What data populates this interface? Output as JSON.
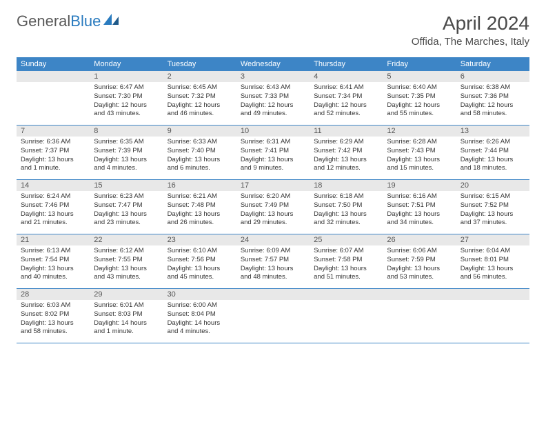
{
  "brand": {
    "part1": "General",
    "part2": "Blue"
  },
  "title": "April 2024",
  "location": "Offida, The Marches, Italy",
  "colors": {
    "header_bg": "#3d85c6",
    "header_text": "#ffffff",
    "daynum_bg": "#e8e8e8",
    "border": "#3d85c6",
    "body_text": "#333333",
    "brand_gray": "#5a5a5a",
    "brand_blue": "#2a7bbf"
  },
  "day_names": [
    "Sunday",
    "Monday",
    "Tuesday",
    "Wednesday",
    "Thursday",
    "Friday",
    "Saturday"
  ],
  "weeks": [
    [
      {
        "n": "",
        "sunrise": "",
        "sunset": "",
        "daylight": ""
      },
      {
        "n": "1",
        "sunrise": "Sunrise: 6:47 AM",
        "sunset": "Sunset: 7:30 PM",
        "daylight": "Daylight: 12 hours and 43 minutes."
      },
      {
        "n": "2",
        "sunrise": "Sunrise: 6:45 AM",
        "sunset": "Sunset: 7:32 PM",
        "daylight": "Daylight: 12 hours and 46 minutes."
      },
      {
        "n": "3",
        "sunrise": "Sunrise: 6:43 AM",
        "sunset": "Sunset: 7:33 PM",
        "daylight": "Daylight: 12 hours and 49 minutes."
      },
      {
        "n": "4",
        "sunrise": "Sunrise: 6:41 AM",
        "sunset": "Sunset: 7:34 PM",
        "daylight": "Daylight: 12 hours and 52 minutes."
      },
      {
        "n": "5",
        "sunrise": "Sunrise: 6:40 AM",
        "sunset": "Sunset: 7:35 PM",
        "daylight": "Daylight: 12 hours and 55 minutes."
      },
      {
        "n": "6",
        "sunrise": "Sunrise: 6:38 AM",
        "sunset": "Sunset: 7:36 PM",
        "daylight": "Daylight: 12 hours and 58 minutes."
      }
    ],
    [
      {
        "n": "7",
        "sunrise": "Sunrise: 6:36 AM",
        "sunset": "Sunset: 7:37 PM",
        "daylight": "Daylight: 13 hours and 1 minute."
      },
      {
        "n": "8",
        "sunrise": "Sunrise: 6:35 AM",
        "sunset": "Sunset: 7:39 PM",
        "daylight": "Daylight: 13 hours and 4 minutes."
      },
      {
        "n": "9",
        "sunrise": "Sunrise: 6:33 AM",
        "sunset": "Sunset: 7:40 PM",
        "daylight": "Daylight: 13 hours and 6 minutes."
      },
      {
        "n": "10",
        "sunrise": "Sunrise: 6:31 AM",
        "sunset": "Sunset: 7:41 PM",
        "daylight": "Daylight: 13 hours and 9 minutes."
      },
      {
        "n": "11",
        "sunrise": "Sunrise: 6:29 AM",
        "sunset": "Sunset: 7:42 PM",
        "daylight": "Daylight: 13 hours and 12 minutes."
      },
      {
        "n": "12",
        "sunrise": "Sunrise: 6:28 AM",
        "sunset": "Sunset: 7:43 PM",
        "daylight": "Daylight: 13 hours and 15 minutes."
      },
      {
        "n": "13",
        "sunrise": "Sunrise: 6:26 AM",
        "sunset": "Sunset: 7:44 PM",
        "daylight": "Daylight: 13 hours and 18 minutes."
      }
    ],
    [
      {
        "n": "14",
        "sunrise": "Sunrise: 6:24 AM",
        "sunset": "Sunset: 7:46 PM",
        "daylight": "Daylight: 13 hours and 21 minutes."
      },
      {
        "n": "15",
        "sunrise": "Sunrise: 6:23 AM",
        "sunset": "Sunset: 7:47 PM",
        "daylight": "Daylight: 13 hours and 23 minutes."
      },
      {
        "n": "16",
        "sunrise": "Sunrise: 6:21 AM",
        "sunset": "Sunset: 7:48 PM",
        "daylight": "Daylight: 13 hours and 26 minutes."
      },
      {
        "n": "17",
        "sunrise": "Sunrise: 6:20 AM",
        "sunset": "Sunset: 7:49 PM",
        "daylight": "Daylight: 13 hours and 29 minutes."
      },
      {
        "n": "18",
        "sunrise": "Sunrise: 6:18 AM",
        "sunset": "Sunset: 7:50 PM",
        "daylight": "Daylight: 13 hours and 32 minutes."
      },
      {
        "n": "19",
        "sunrise": "Sunrise: 6:16 AM",
        "sunset": "Sunset: 7:51 PM",
        "daylight": "Daylight: 13 hours and 34 minutes."
      },
      {
        "n": "20",
        "sunrise": "Sunrise: 6:15 AM",
        "sunset": "Sunset: 7:52 PM",
        "daylight": "Daylight: 13 hours and 37 minutes."
      }
    ],
    [
      {
        "n": "21",
        "sunrise": "Sunrise: 6:13 AM",
        "sunset": "Sunset: 7:54 PM",
        "daylight": "Daylight: 13 hours and 40 minutes."
      },
      {
        "n": "22",
        "sunrise": "Sunrise: 6:12 AM",
        "sunset": "Sunset: 7:55 PM",
        "daylight": "Daylight: 13 hours and 43 minutes."
      },
      {
        "n": "23",
        "sunrise": "Sunrise: 6:10 AM",
        "sunset": "Sunset: 7:56 PM",
        "daylight": "Daylight: 13 hours and 45 minutes."
      },
      {
        "n": "24",
        "sunrise": "Sunrise: 6:09 AM",
        "sunset": "Sunset: 7:57 PM",
        "daylight": "Daylight: 13 hours and 48 minutes."
      },
      {
        "n": "25",
        "sunrise": "Sunrise: 6:07 AM",
        "sunset": "Sunset: 7:58 PM",
        "daylight": "Daylight: 13 hours and 51 minutes."
      },
      {
        "n": "26",
        "sunrise": "Sunrise: 6:06 AM",
        "sunset": "Sunset: 7:59 PM",
        "daylight": "Daylight: 13 hours and 53 minutes."
      },
      {
        "n": "27",
        "sunrise": "Sunrise: 6:04 AM",
        "sunset": "Sunset: 8:01 PM",
        "daylight": "Daylight: 13 hours and 56 minutes."
      }
    ],
    [
      {
        "n": "28",
        "sunrise": "Sunrise: 6:03 AM",
        "sunset": "Sunset: 8:02 PM",
        "daylight": "Daylight: 13 hours and 58 minutes."
      },
      {
        "n": "29",
        "sunrise": "Sunrise: 6:01 AM",
        "sunset": "Sunset: 8:03 PM",
        "daylight": "Daylight: 14 hours and 1 minute."
      },
      {
        "n": "30",
        "sunrise": "Sunrise: 6:00 AM",
        "sunset": "Sunset: 8:04 PM",
        "daylight": "Daylight: 14 hours and 4 minutes."
      },
      {
        "n": "",
        "sunrise": "",
        "sunset": "",
        "daylight": ""
      },
      {
        "n": "",
        "sunrise": "",
        "sunset": "",
        "daylight": ""
      },
      {
        "n": "",
        "sunrise": "",
        "sunset": "",
        "daylight": ""
      },
      {
        "n": "",
        "sunrise": "",
        "sunset": "",
        "daylight": ""
      }
    ]
  ]
}
